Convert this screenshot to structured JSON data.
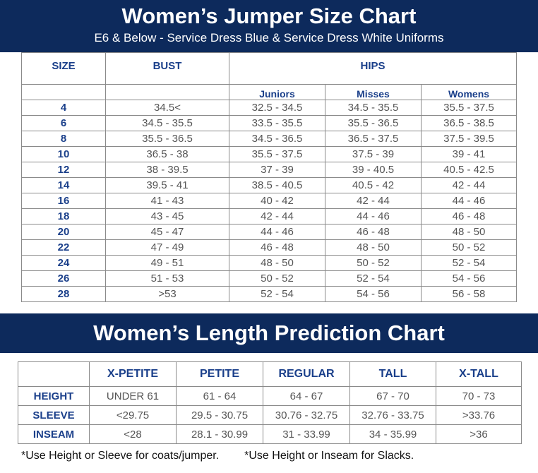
{
  "jumper_chart": {
    "title": "Women’s Jumper Size Chart",
    "subtitle": "E6 & Below - Service Dress Blue & Service Dress White Uniforms",
    "headers": {
      "size": "SIZE",
      "bust": "BUST",
      "hips": "HIPS"
    },
    "hips_subheaders": [
      "Juniors",
      "Misses",
      "Womens"
    ],
    "rows": [
      [
        "4",
        "34.5<",
        "32.5 - 34.5",
        "34.5 - 35.5",
        "35.5 - 37.5"
      ],
      [
        "6",
        "34.5 - 35.5",
        "33.5 - 35.5",
        "35.5 - 36.5",
        "36.5 - 38.5"
      ],
      [
        "8",
        "35.5 - 36.5",
        "34.5 - 36.5",
        "36.5 - 37.5",
        "37.5 - 39.5"
      ],
      [
        "10",
        "36.5 - 38",
        "35.5 - 37.5",
        "37.5 - 39",
        "39 - 41"
      ],
      [
        "12",
        "38 - 39.5",
        "37 - 39",
        "39 - 40.5",
        "40.5 - 42.5"
      ],
      [
        "14",
        "39.5 - 41",
        "38.5 - 40.5",
        "40.5 - 42",
        "42 - 44"
      ],
      [
        "16",
        "41 - 43",
        "40 - 42",
        "42 - 44",
        "44 - 46"
      ],
      [
        "18",
        "43 - 45",
        "42 - 44",
        "44 - 46",
        "46 - 48"
      ],
      [
        "20",
        "45 - 47",
        "44 - 46",
        "46 - 48",
        "48 - 50"
      ],
      [
        "22",
        "47 - 49",
        "46 - 48",
        "48 - 50",
        "50 - 52"
      ],
      [
        "24",
        "49 - 51",
        "48 - 50",
        "50 - 52",
        "52 - 54"
      ],
      [
        "26",
        "51 - 53",
        "50 - 52",
        "52 - 54",
        "54 - 56"
      ],
      [
        "28",
        ">53",
        "52 - 54",
        "54 - 56",
        "56 - 58"
      ]
    ]
  },
  "length_chart": {
    "title": "Women’s Length Prediction Chart",
    "columns": [
      "X-PETITE",
      "PETITE",
      "REGULAR",
      "TALL",
      "X-TALL"
    ],
    "rows": [
      {
        "label": "HEIGHT",
        "values": [
          "UNDER 61",
          "61 - 64",
          "64 - 67",
          "67 - 70",
          "70 - 73"
        ]
      },
      {
        "label": "SLEEVE",
        "values": [
          "<29.75",
          "29.5 - 30.75",
          "30.76 - 32.75",
          "32.76 - 33.75",
          ">33.76"
        ]
      },
      {
        "label": "INSEAM",
        "values": [
          "<28",
          "28.1 - 30.99",
          "31 - 33.99",
          "34 - 35.99",
          ">36"
        ]
      }
    ]
  },
  "notes": {
    "note1": "*Use Height or Sleeve for coats/jumper.",
    "note2": "*Use Height or Inseam for Slacks."
  },
  "colors": {
    "banner": "#0d2a5c",
    "header_text": "#1a3f8a",
    "cell_text": "#555555"
  }
}
